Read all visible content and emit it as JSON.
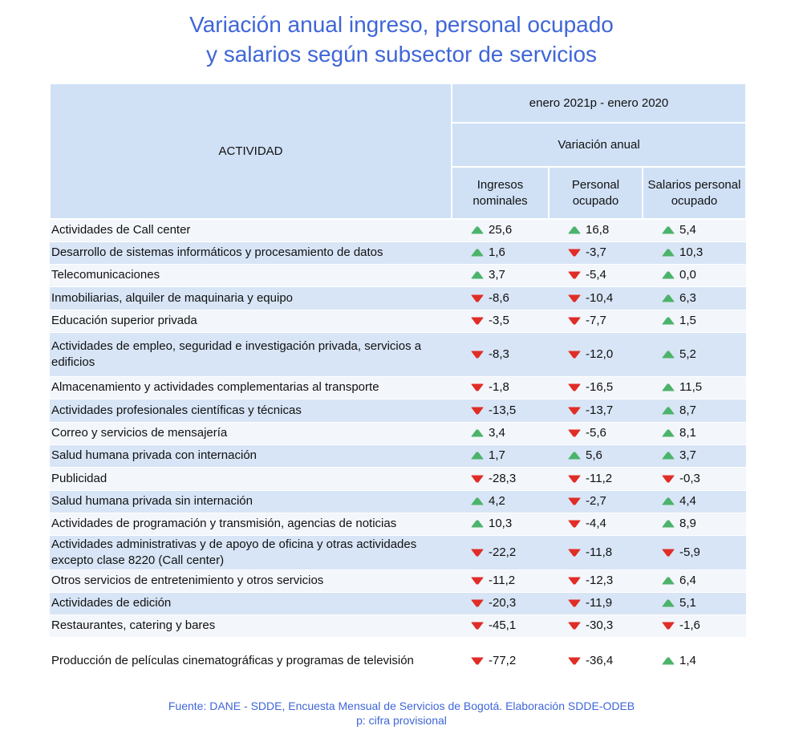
{
  "header": {
    "title_lines": [
      "Variación anual ingreso, personal ocupado",
      "y salarios según subsector de servicios"
    ]
  },
  "table": {
    "activity_header": "ACTIVIDAD",
    "period": "enero 2021p - enero 2020",
    "group": "Variación anual",
    "columns": [
      "Ingresos nominales",
      "Personal ocupado",
      "Salarios personal ocupado"
    ],
    "rows": [
      [
        "Actividades de Call center",
        "25,6",
        "16,8",
        "5,4"
      ],
      [
        "Desarrollo de sistemas informáticos y procesamiento de datos",
        "1,6",
        "-3,7",
        "10,3"
      ],
      [
        "Telecomunicaciones",
        "3,7",
        "-5,4",
        "0,0"
      ],
      [
        "Inmobiliarias, alquiler de maquinaria y equipo",
        "-8,6",
        "-10,4",
        "6,3"
      ],
      [
        "Educación superior privada",
        "-3,5",
        "-7,7",
        "1,5"
      ],
      [
        "Actividades de empleo, seguridad e investigación privada, servicios a edificios",
        "-8,3",
        "-12,0",
        "5,2"
      ],
      [
        "Almacenamiento y actividades complementarias al transporte",
        "-1,8",
        "-16,5",
        "11,5"
      ],
      [
        "Actividades profesionales científicas y técnicas",
        "-13,5",
        "-13,7",
        "8,7"
      ],
      [
        "Correo y servicios de mensajería",
        "3,4",
        "-5,6",
        "8,1"
      ],
      [
        "Salud humana privada con internación",
        "1,7",
        "5,6",
        "3,7"
      ],
      [
        "Publicidad",
        "-28,3",
        "-11,2",
        "-0,3"
      ],
      [
        "Salud humana privada sin internación",
        "4,2",
        "-2,7",
        "4,4"
      ],
      [
        "Actividades de programación y transmisión,  agencias de noticias",
        "10,3",
        "-4,4",
        "8,9"
      ],
      [
        "Actividades administrativas y de apoyo de oficina y otras actividades excepto clase 8220 (Call center)",
        "-22,2",
        "-11,8",
        "-5,9"
      ],
      [
        "Otros servicios de entretenimiento y otros servicios",
        "-11,2",
        "-12,3",
        "6,4"
      ],
      [
        "Actividades de edición",
        "-20,3",
        "-11,9",
        "5,1"
      ],
      [
        "Restaurantes, catering y bares",
        "-45,1",
        "-30,3",
        "-1,6"
      ],
      [
        "Producción de películas cinematográficas y programas de televisión",
        "-77,2",
        "-36,4",
        "1,4"
      ]
    ]
  },
  "footer": {
    "source": "Fuente: DANE - SDDE, Encuesta Mensual de Servicios de Bogotá. Elaboración SDDE-ODEB",
    "note": "p: cifra provisional"
  }
}
